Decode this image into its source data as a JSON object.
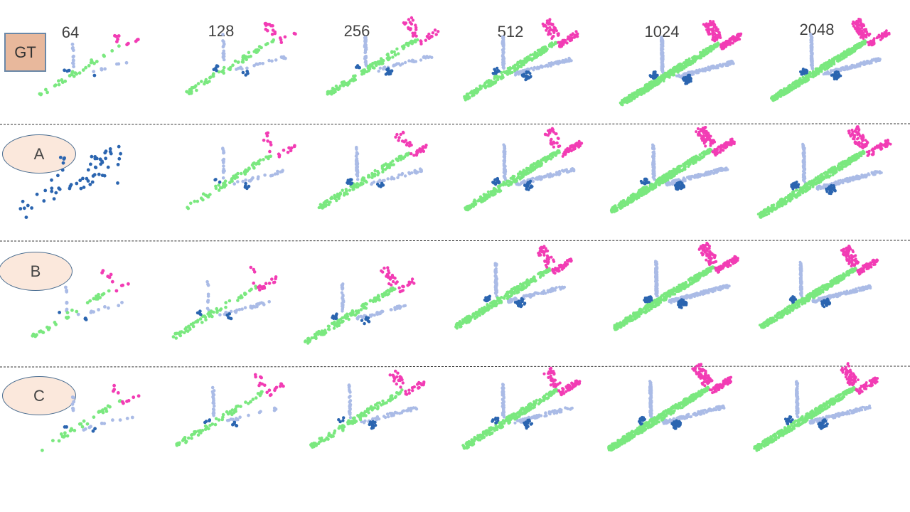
{
  "column_headers": [
    "64",
    "128",
    "256",
    "512",
    "1024",
    "2048"
  ],
  "row_labels": {
    "gt": "GT",
    "a": "A",
    "b": "B",
    "c": "C"
  },
  "part_colors": {
    "fuselage": "#7ae87f",
    "tail": "#f23cb4",
    "wings": "#aabbe6",
    "engines": "#2b65b0"
  }
}
